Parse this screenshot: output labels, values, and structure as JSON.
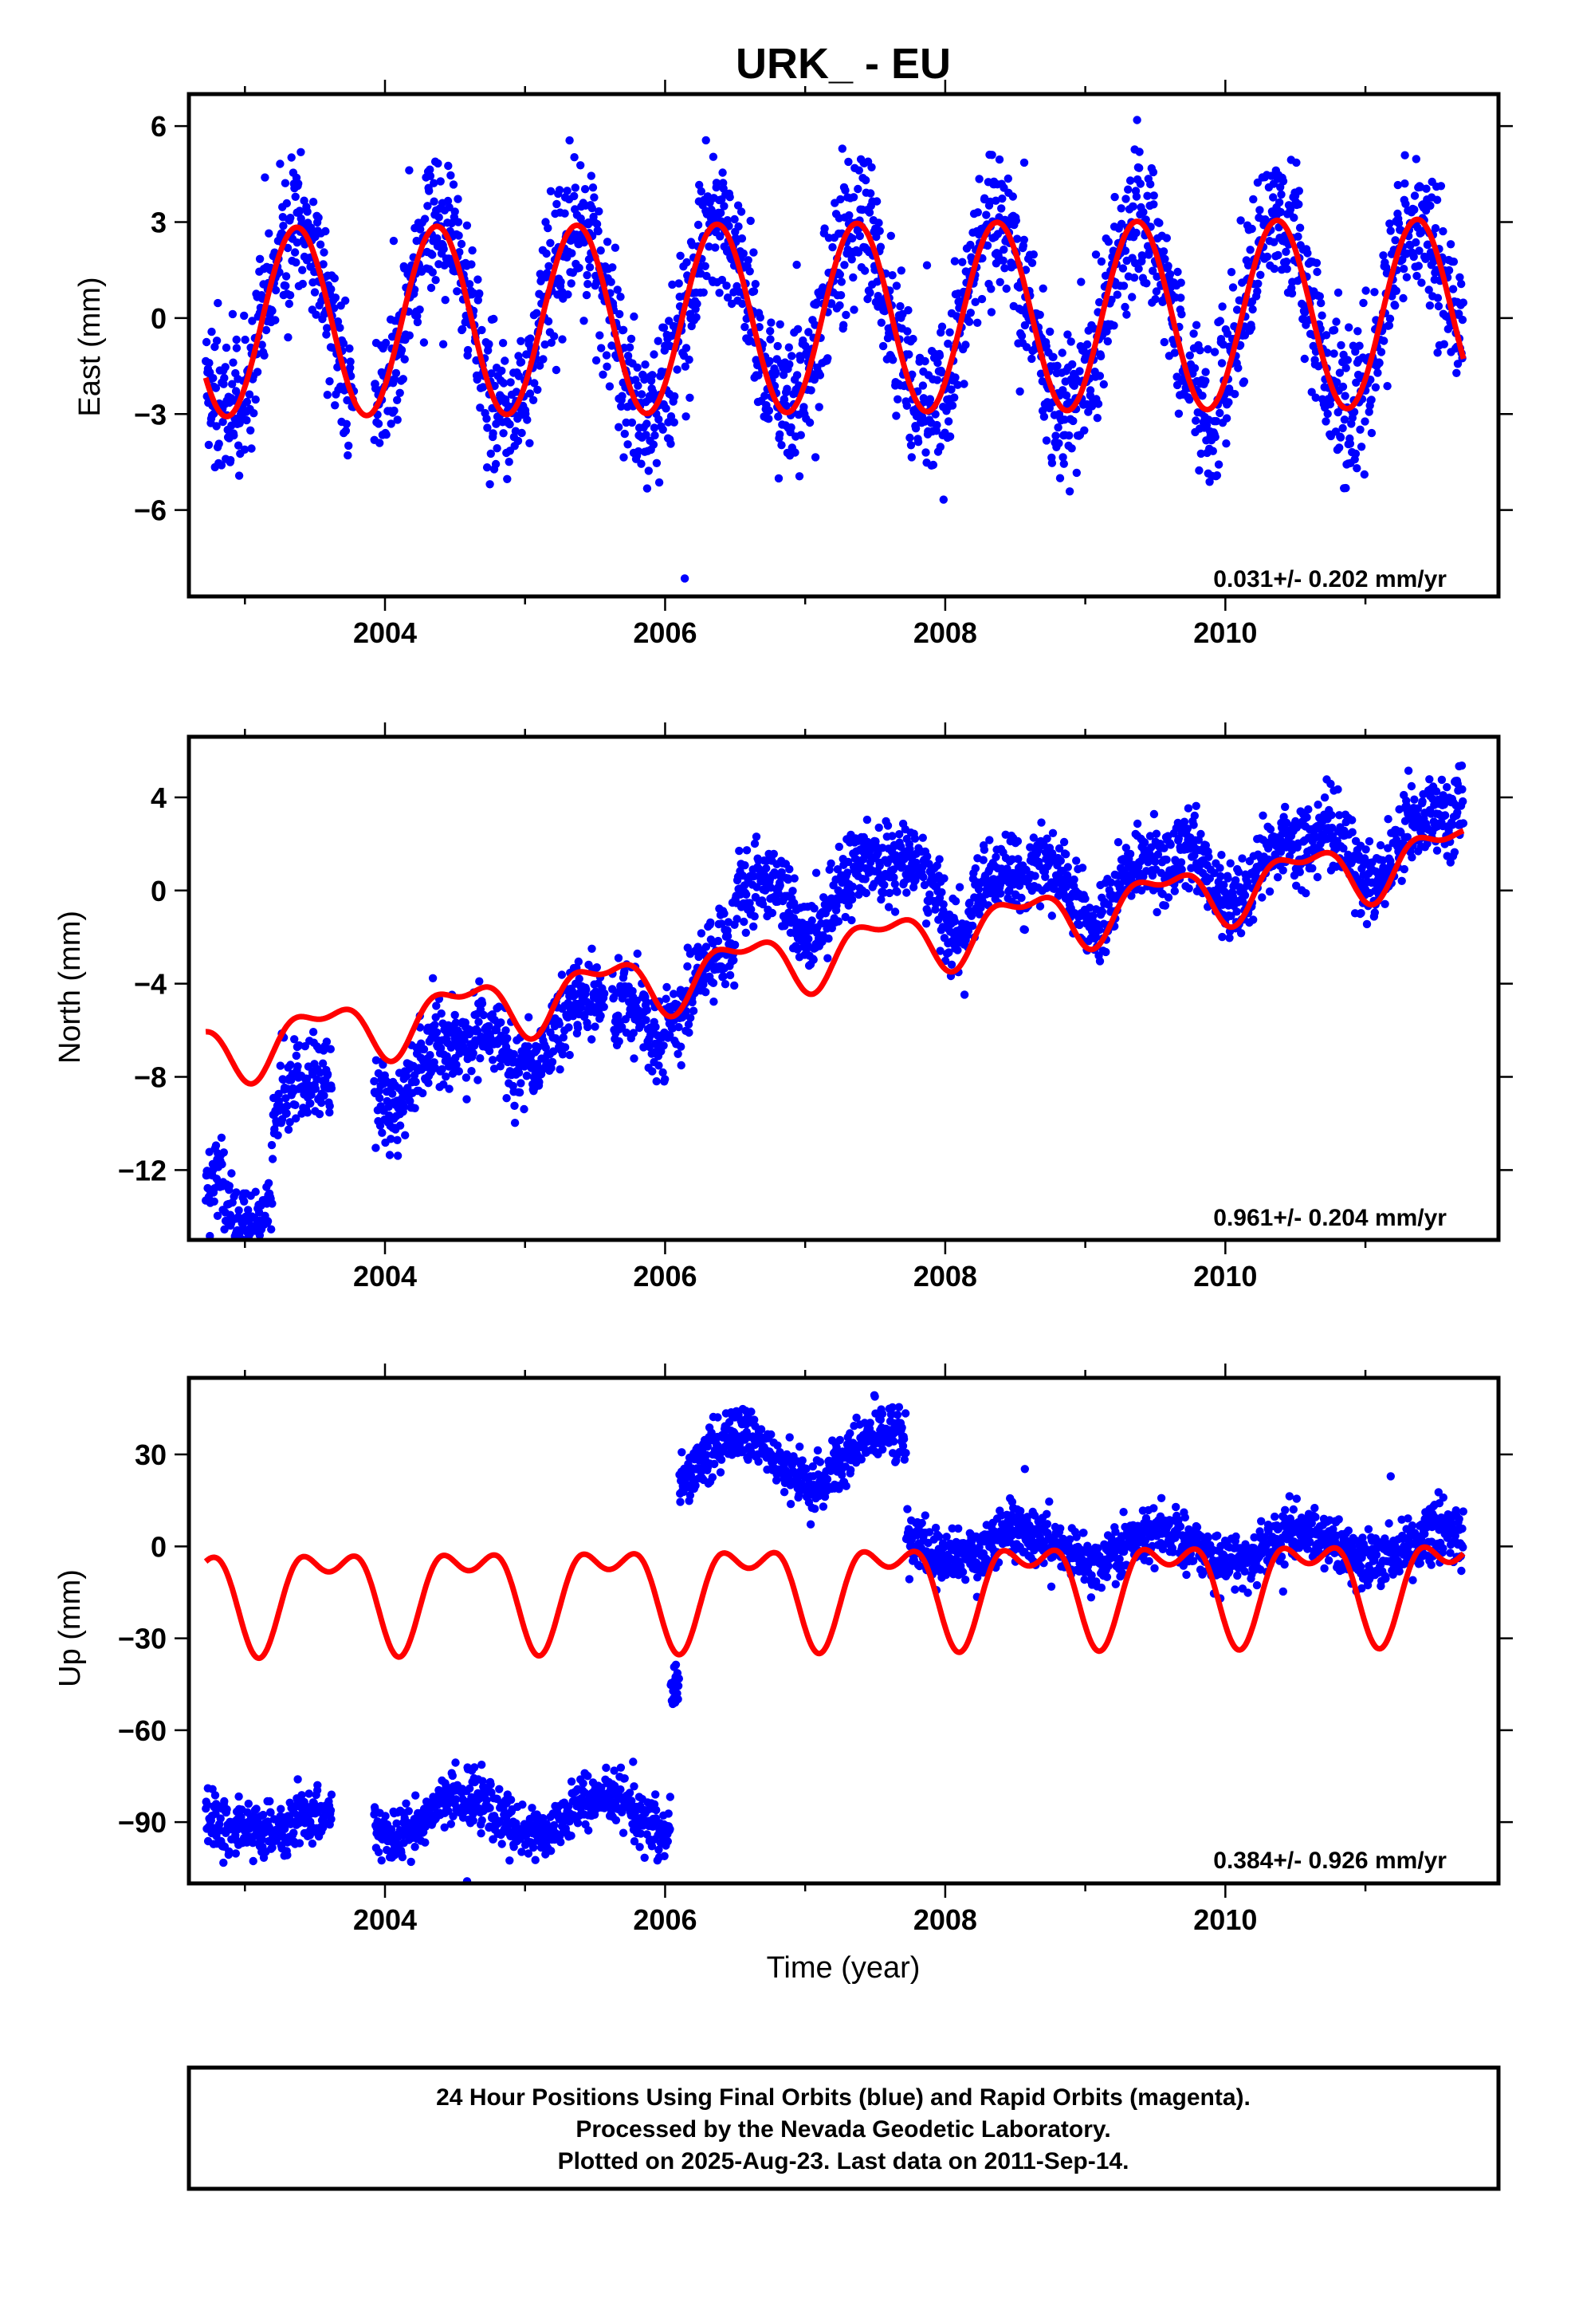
{
  "title": "URK_ - EU",
  "colors": {
    "points": "#0000ff",
    "model": "#ff0000",
    "frame": "#000000"
  },
  "chart_data": [
    {
      "type": "scatter",
      "component": "east",
      "ylabel": "East (mm)",
      "ylim": [
        -8.7,
        7.0
      ],
      "yticks": [
        -6,
        -3,
        0,
        3,
        6
      ],
      "xlim": [
        2002.6,
        2011.95
      ],
      "xticks": [
        2004,
        2006,
        2008,
        2010
      ],
      "rate_label": "0.031+/- 0.202 mm/yr",
      "data_span": [
        2002.72,
        2011.7
      ],
      "series": [
        {
          "name": "positions",
          "kind": "points",
          "model_ref": "fit",
          "noise_sd": 1.15,
          "gaps": [
            [
              2003.78,
              2003.92
            ]
          ],
          "offsets": []
        },
        {
          "name": "fit",
          "kind": "line",
          "offset": 0.0,
          "trend_per_yr": 0.031,
          "ref_epoch": 2007.0,
          "annual_amp": 2.95,
          "annual_peak_phase": 0.37,
          "semiannual_amp": 0.0,
          "semiannual_peak_phase": 0.0,
          "steps": []
        }
      ]
    },
    {
      "type": "scatter",
      "component": "north",
      "ylabel": "North (mm)",
      "ylim": [
        -15.0,
        6.6
      ],
      "yticks": [
        -12,
        -8,
        -4,
        0,
        4
      ],
      "xlim": [
        2002.6,
        2011.95
      ],
      "xticks": [
        2004,
        2006,
        2008,
        2010
      ],
      "rate_label": "0.961+/- 0.204 mm/yr",
      "data_span": [
        2002.72,
        2011.7
      ],
      "series": [
        {
          "name": "positions",
          "kind": "points",
          "model_ref": "fit",
          "noise_sd": 0.85,
          "gaps": [
            [
              2003.62,
              2003.92
            ],
            [
              2005.57,
              2005.62
            ]
          ],
          "offsets": [
            [
              2002.72,
              2003.2,
              -6.2
            ],
            [
              2003.2,
              2003.62,
              -2.8
            ],
            [
              2003.92,
              2005.0,
              -2.0
            ],
            [
              2005.0,
              2005.57,
              -1.2
            ],
            [
              2005.62,
              2006.0,
              -1.6
            ],
            [
              2006.0,
              2006.5,
              0.0
            ],
            [
              2006.5,
              2008.0,
              2.6
            ],
            [
              2008.0,
              2009.0,
              1.3
            ],
            [
              2009.0,
              2011.7,
              0.9
            ]
          ]
        },
        {
          "name": "fit",
          "kind": "line",
          "offset": -2.8,
          "trend_per_yr": 0.961,
          "ref_epoch": 2007.0,
          "annual_amp": 1.15,
          "annual_peak_phase": 0.55,
          "semiannual_amp": 0.55,
          "semiannual_peak_phase": 0.3,
          "steps": [
            [
              2006.0,
              0.0
            ]
          ]
        }
      ]
    },
    {
      "type": "scatter",
      "component": "up",
      "ylabel": "Up (mm)",
      "ylim": [
        -110.0,
        55.0
      ],
      "yticks": [
        -90,
        -60,
        -30,
        0,
        30
      ],
      "xlim": [
        2002.6,
        2011.95
      ],
      "xticks": [
        2004,
        2006,
        2008,
        2010
      ],
      "xlabel": "Time (year)",
      "rate_label": "0.384+/- 0.926 mm/yr",
      "data_span": [
        2002.72,
        2011.7
      ],
      "series": [
        {
          "name": "positions",
          "kind": "points",
          "model_ref": "none",
          "noise_sd": 4.5,
          "gaps": [
            [
              2003.62,
              2003.92
            ]
          ],
          "offsets": [
            [
              2002.72,
              2003.62,
              -90,
              4,
              0.6,
              0.1
            ],
            [
              2003.92,
              2006.04,
              -88,
              6,
              0.55,
              0.2
            ],
            [
              2006.04,
              2006.1,
              -50,
              3,
              0.0,
              0.0
            ],
            [
              2006.1,
              2007.72,
              29,
              8,
              0.55,
              0.0
            ],
            [
              2007.72,
              2011.7,
              0,
              5,
              0.55,
              0.0
            ]
          ]
        },
        {
          "name": "fit",
          "kind": "line",
          "offset": -13.0,
          "trend_per_yr": 0.384,
          "ref_epoch": 2007.0,
          "annual_amp": 14.0,
          "annual_peak_phase": 0.6,
          "semiannual_amp": 8.0,
          "semiannual_peak_phase": 0.35,
          "steps": []
        }
      ]
    }
  ],
  "footer": {
    "line1": "24 Hour Positions Using Final Orbits (blue) and Rapid Orbits (magenta).",
    "line2": "Processed by the Nevada Geodetic Laboratory.",
    "line3": "Plotted on 2025-Aug-23. Last data on 2011-Sep-14."
  }
}
